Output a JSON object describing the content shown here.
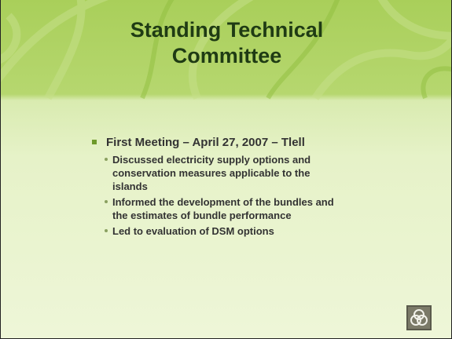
{
  "title": "Standing Technical Committee",
  "bullets": [
    {
      "text": "First Meeting – April 27, 2007 – Tlell",
      "sub": [
        "Discussed electricity supply options and conservation measures applicable to the islands",
        "Informed the development of the bundles and the estimates of bundle performance",
        "Led to evaluation of DSM options"
      ]
    }
  ]
}
